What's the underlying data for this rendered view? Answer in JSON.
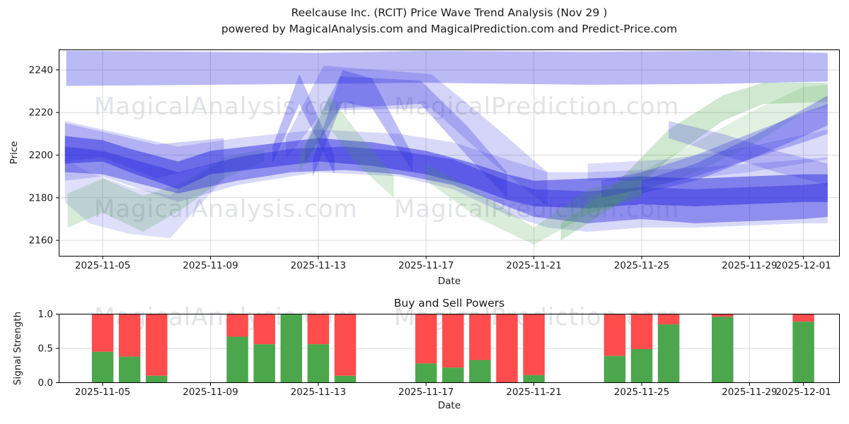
{
  "title": {
    "line1": "Reelcause Inc. (RCIT) Price Wave Trend Analysis (Nov 29 )",
    "line2": "powered by MagicalAnalysis.com and MagicalPrediction.com and Predict-Price.com"
  },
  "watermark": {
    "texts": [
      "MagicalAnalysis.com",
      "MagicalPrediction.com"
    ],
    "color": "rgba(168,172,184,0.34)"
  },
  "style": {
    "grid_color": "#d9d9d9",
    "spine_color": "#000000",
    "tick_label_color": "#1a1a1a",
    "band_colors": {
      "blue": "#2828e0",
      "green": "#44a044"
    },
    "bar_colors": {
      "buy": "#4ca64c",
      "sell": "#ff4c4c"
    }
  },
  "chart_data": [
    {
      "type": "area",
      "title": "Reelcause Inc. (RCIT) Price Wave Trend Analysis (Nov 29 )",
      "xlabel": "Date",
      "ylabel": "Price",
      "grid": true,
      "x_unit": "days since 2025-11-03",
      "xlim": [
        0.37,
        29.35
      ],
      "ylim": [
        2152.4,
        2249.6
      ],
      "yticks": [
        2160,
        2180,
        2200,
        2220,
        2240
      ],
      "xticks": [
        {
          "day": 2,
          "label": "2025-11-05"
        },
        {
          "day": 6,
          "label": "2025-11-09"
        },
        {
          "day": 10,
          "label": "2025-11-13"
        },
        {
          "day": 14,
          "label": "2025-11-17"
        },
        {
          "day": 18,
          "label": "2025-11-21"
        },
        {
          "day": 22,
          "label": "2025-11-25"
        },
        {
          "day": 26,
          "label": "2025-11-29"
        },
        {
          "day": 28,
          "label": "2025-12-01"
        }
      ],
      "bands": [
        {
          "name": "ceiling-band",
          "color": "blue",
          "opacity": 0.32,
          "x": [
            0.65,
            6,
            10,
            14,
            20,
            25,
            28.9
          ],
          "top": [
            2249,
            2248.5,
            2248,
            2249,
            2248.5,
            2249,
            2248
          ],
          "bottom": [
            2232.5,
            2233,
            2233.5,
            2234,
            2233,
            2233.5,
            2234.5
          ]
        },
        {
          "name": "outer-light-band",
          "color": "blue",
          "opacity": 0.18,
          "x": [
            0.6,
            2,
            4.8,
            7,
            10,
            13,
            15,
            17,
            18.5,
            20,
            22,
            24,
            26,
            28,
            28.9
          ],
          "top": [
            2216,
            2212,
            2204,
            2208,
            2212,
            2210,
            2206,
            2198,
            2192,
            2192,
            2193,
            2194,
            2196,
            2198,
            2199
          ],
          "bottom": [
            2188,
            2190,
            2178,
            2186,
            2192,
            2190,
            2184,
            2172,
            2166,
            2164,
            2166,
            2166,
            2167,
            2168,
            2168
          ]
        },
        {
          "name": "left-fan-band",
          "color": "blue",
          "opacity": 0.22,
          "x": [
            0.6,
            2,
            4,
            6.5
          ],
          "top": [
            2215,
            2211,
            2205,
            2208
          ],
          "bottom": [
            2197,
            2199,
            2189,
            2197
          ]
        },
        {
          "name": "left-low-band",
          "color": "blue",
          "opacity": 0.15,
          "x": [
            0.6,
            1.5,
            3,
            4.5,
            6.5
          ],
          "top": [
            2198,
            2192,
            2185,
            2181,
            2198
          ],
          "bottom": [
            2178,
            2168,
            2163,
            2161,
            2189
          ]
        },
        {
          "name": "left-green-band",
          "color": "green",
          "opacity": 0.22,
          "x": [
            0.7,
            2,
            3.5,
            5,
            6.5,
            8
          ],
          "top": [
            2182,
            2189,
            2181,
            2187,
            2199,
            2203
          ],
          "bottom": [
            2166,
            2173,
            2164,
            2175,
            2189,
            2197
          ]
        },
        {
          "name": "core-band-1",
          "color": "blue",
          "opacity": 0.5,
          "x": [
            0.6,
            2,
            3,
            4.8,
            6,
            8,
            10,
            12,
            14,
            15.5,
            17,
            18,
            20,
            22,
            24,
            26,
            28,
            28.9
          ],
          "top": [
            2209,
            2207,
            2203,
            2197,
            2202,
            2205,
            2208,
            2206,
            2202,
            2197,
            2191,
            2188,
            2189,
            2190,
            2189,
            2190,
            2191,
            2191
          ],
          "bottom": [
            2196,
            2197,
            2192,
            2184,
            2191,
            2194,
            2197,
            2195,
            2191,
            2186,
            2179,
            2176,
            2175,
            2177,
            2176,
            2177,
            2178,
            2178
          ]
        },
        {
          "name": "core-band-2",
          "color": "blue",
          "opacity": 0.42,
          "x": [
            0.6,
            2,
            4.8,
            7,
            9,
            11,
            13,
            15,
            17,
            18,
            20,
            22,
            24,
            26,
            28,
            28.9
          ],
          "top": [
            2204,
            2202,
            2192,
            2199,
            2203,
            2204,
            2202,
            2198,
            2188,
            2184,
            2183,
            2185,
            2184,
            2185,
            2186,
            2187
          ],
          "bottom": [
            2192,
            2191,
            2182,
            2188,
            2192,
            2193,
            2191,
            2186,
            2176,
            2171,
            2168,
            2170,
            2168,
            2169,
            2170,
            2171
          ]
        },
        {
          "name": "spike-band-a",
          "color": "blue",
          "opacity": 0.3,
          "x": [
            8.3,
            9.3,
            10.6
          ],
          "top": [
            2204,
            2238,
            2200
          ],
          "bottom": [
            2196,
            2224,
            2191
          ]
        },
        {
          "name": "spike-band-b",
          "color": "blue",
          "opacity": 0.3,
          "x": [
            9.8,
            10.9,
            12,
            13.5
          ],
          "top": [
            2198,
            2240,
            2236,
            2200
          ],
          "bottom": [
            2190,
            2225,
            2222,
            2192
          ]
        },
        {
          "name": "spike-band-c",
          "color": "blue",
          "opacity": 0.28,
          "x": [
            9.5,
            10.8,
            13.8,
            15.5,
            17
          ],
          "top": [
            2204,
            2237,
            2235,
            2214,
            2192
          ],
          "bottom": [
            2196,
            2222,
            2224,
            2200,
            2180
          ]
        },
        {
          "name": "spike-band-d",
          "color": "blue",
          "opacity": 0.2,
          "x": [
            8.8,
            10.2,
            14.2,
            16.5,
            18.5
          ],
          "top": [
            2208,
            2242,
            2238,
            2214,
            2192
          ],
          "bottom": [
            2198,
            2221,
            2222,
            2196,
            2176
          ]
        },
        {
          "name": "spike-green-band",
          "color": "green",
          "opacity": 0.2,
          "x": [
            9.3,
            10.4,
            11.5,
            12.8
          ],
          "top": [
            2200,
            2228,
            2210,
            2190
          ],
          "bottom": [
            2192,
            2213,
            2195,
            2180
          ]
        },
        {
          "name": "green-dip-band",
          "color": "green",
          "opacity": 0.2,
          "x": [
            14,
            16,
            18,
            20,
            22
          ],
          "top": [
            2196,
            2182,
            2166,
            2184,
            2190
          ],
          "bottom": [
            2188,
            2170,
            2158,
            2172,
            2180
          ]
        },
        {
          "name": "right-green-band-1",
          "color": "green",
          "opacity": 0.25,
          "x": [
            19,
            21,
            23,
            25,
            26.5,
            28.9
          ],
          "top": [
            2168,
            2186,
            2212,
            2228,
            2234,
            2234
          ],
          "bottom": [
            2160,
            2176,
            2198,
            2216,
            2224,
            2225
          ]
        },
        {
          "name": "right-green-band-2",
          "color": "green",
          "opacity": 0.16,
          "x": [
            20,
            22,
            24,
            26,
            28,
            28.9
          ],
          "top": [
            2180,
            2192,
            2206,
            2220,
            2232,
            2233
          ],
          "bottom": [
            2172,
            2182,
            2192,
            2204,
            2220,
            2222
          ]
        },
        {
          "name": "right-blue-band-1",
          "color": "blue",
          "opacity": 0.28,
          "x": [
            20.5,
            22,
            24,
            26,
            28,
            28.9
          ],
          "top": [
            2188,
            2192,
            2200,
            2210,
            2220,
            2224
          ],
          "bottom": [
            2180,
            2184,
            2190,
            2198,
            2206,
            2210
          ]
        },
        {
          "name": "right-blue-band-2",
          "color": "blue",
          "opacity": 0.3,
          "x": [
            22,
            24,
            26,
            27.5,
            28.9
          ],
          "top": [
            2188,
            2196,
            2208,
            2218,
            2228
          ],
          "bottom": [
            2182,
            2188,
            2198,
            2206,
            2214
          ]
        },
        {
          "name": "right-blue-band-3",
          "color": "blue",
          "opacity": 0.22,
          "x": [
            23,
            25,
            27,
            28.9
          ],
          "top": [
            2216,
            2210,
            2202,
            2196
          ],
          "bottom": [
            2208,
            2200,
            2192,
            2186
          ]
        },
        {
          "name": "right-blue-band-4",
          "color": "blue",
          "opacity": 0.16,
          "x": [
            20,
            23,
            26,
            28.9
          ],
          "top": [
            2196,
            2198,
            2204,
            2212
          ],
          "bottom": [
            2188,
            2188,
            2192,
            2198
          ]
        }
      ]
    },
    {
      "type": "bar",
      "stacked": true,
      "title": "Buy and Sell Powers",
      "xlabel": "Date",
      "ylabel": "Signal Strength",
      "grid": true,
      "ylim": [
        0,
        1
      ],
      "yticks": [
        {
          "v": 0.0,
          "label": "0.0"
        },
        {
          "v": 0.5,
          "label": "0.5"
        },
        {
          "v": 1.0,
          "label": "1.0"
        }
      ],
      "xlim": [
        0.37,
        29.35
      ],
      "x_unit": "days since 2025-11-03",
      "xticks": [
        {
          "day": 2,
          "label": "2025-11-05"
        },
        {
          "day": 6,
          "label": "2025-11-09"
        },
        {
          "day": 10,
          "label": "2025-11-13"
        },
        {
          "day": 14,
          "label": "2025-11-17"
        },
        {
          "day": 18,
          "label": "2025-11-21"
        },
        {
          "day": 22,
          "label": "2025-11-25"
        },
        {
          "day": 26,
          "label": "2025-11-29"
        },
        {
          "day": 28,
          "label": "2025-12-01"
        }
      ],
      "bar_width_days": 0.8,
      "series_names": [
        "buy_power",
        "sell_power"
      ],
      "bars": [
        {
          "date": "2025-11-05",
          "day": 2,
          "buy": 0.45,
          "sell": 0.55
        },
        {
          "date": "2025-11-06",
          "day": 3,
          "buy": 0.38,
          "sell": 0.62
        },
        {
          "date": "2025-11-07",
          "day": 4,
          "buy": 0.1,
          "sell": 0.9
        },
        {
          "date": "2025-11-10",
          "day": 7,
          "buy": 0.67,
          "sell": 0.33
        },
        {
          "date": "2025-11-11",
          "day": 8,
          "buy": 0.56,
          "sell": 0.44
        },
        {
          "date": "2025-11-12",
          "day": 9,
          "buy": 1.0,
          "sell": 0.0
        },
        {
          "date": "2025-11-13",
          "day": 10,
          "buy": 0.56,
          "sell": 0.44
        },
        {
          "date": "2025-11-14",
          "day": 11,
          "buy": 0.1,
          "sell": 0.9
        },
        {
          "date": "2025-11-17",
          "day": 14,
          "buy": 0.28,
          "sell": 0.72
        },
        {
          "date": "2025-11-18",
          "day": 15,
          "buy": 0.22,
          "sell": 0.78
        },
        {
          "date": "2025-11-19",
          "day": 16,
          "buy": 0.33,
          "sell": 0.67
        },
        {
          "date": "2025-11-20",
          "day": 17,
          "buy": 0.0,
          "sell": 1.0
        },
        {
          "date": "2025-11-21",
          "day": 18,
          "buy": 0.11,
          "sell": 0.89
        },
        {
          "date": "2025-11-24",
          "day": 21,
          "buy": 0.39,
          "sell": 0.61
        },
        {
          "date": "2025-11-25",
          "day": 22,
          "buy": 0.49,
          "sell": 0.51
        },
        {
          "date": "2025-11-26",
          "day": 23,
          "buy": 0.85,
          "sell": 0.15
        },
        {
          "date": "2025-11-28",
          "day": 25,
          "buy": 0.96,
          "sell": 0.04
        },
        {
          "date": "2025-12-01",
          "day": 28,
          "buy": 0.89,
          "sell": 0.11
        }
      ]
    }
  ]
}
